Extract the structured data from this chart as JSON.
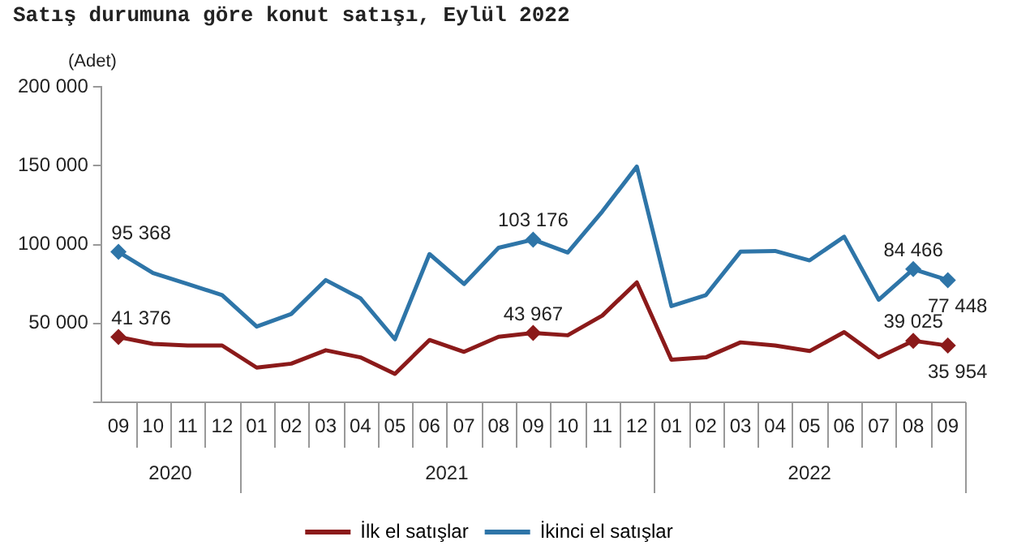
{
  "chart_data": {
    "type": "line",
    "title": "Satış durumuna göre konut satışı, Eylül 2022",
    "ylabel": "(Adet)",
    "categories": [
      "09",
      "10",
      "11",
      "12",
      "01",
      "02",
      "03",
      "04",
      "05",
      "06",
      "07",
      "08",
      "09",
      "10",
      "11",
      "12",
      "01",
      "02",
      "03",
      "04",
      "05",
      "06",
      "07",
      "08",
      "09"
    ],
    "annotations": [
      "2020",
      "2021",
      "2022"
    ],
    "series": [
      {
        "name": "İlk el satışlar",
        "color": "#8b1a1a",
        "values": [
          41376,
          37000,
          36000,
          36000,
          22000,
          24500,
          33000,
          28500,
          18000,
          39500,
          32000,
          41500,
          43967,
          42500,
          55000,
          76000,
          27000,
          28500,
          38000,
          36000,
          32500,
          44500,
          28500,
          39025,
          35954
        ],
        "value_labels": [
          "41 376",
          null,
          null,
          null,
          null,
          null,
          null,
          null,
          null,
          null,
          null,
          null,
          "43 967",
          null,
          null,
          null,
          null,
          null,
          null,
          null,
          null,
          null,
          null,
          "39 025",
          "35 954"
        ]
      },
      {
        "name": "İkinci el satışlar",
        "color": "#2e75a8",
        "values": [
          95368,
          82000,
          75000,
          68000,
          48000,
          56000,
          77500,
          66000,
          40000,
          94000,
          75000,
          98000,
          103176,
          95000,
          121000,
          149500,
          61000,
          68000,
          95500,
          96000,
          90000,
          105000,
          65000,
          84466,
          77448
        ],
        "value_labels": [
          "95 368",
          null,
          null,
          null,
          null,
          null,
          null,
          null,
          null,
          null,
          null,
          null,
          "103 176",
          null,
          null,
          null,
          null,
          null,
          null,
          null,
          null,
          null,
          null,
          "84 466",
          "77 448"
        ]
      }
    ],
    "ylim": [
      0,
      200000
    ],
    "yticks": [
      {
        "value": 0,
        "label": null
      },
      {
        "value": 50000,
        "label": "50 000"
      },
      {
        "value": 100000,
        "label": "100 000"
      },
      {
        "value": 150000,
        "label": "150 000"
      },
      {
        "value": 200000,
        "label": "200 000"
      }
    ],
    "grid": false,
    "legend": "bottom",
    "line_style": "solid"
  }
}
